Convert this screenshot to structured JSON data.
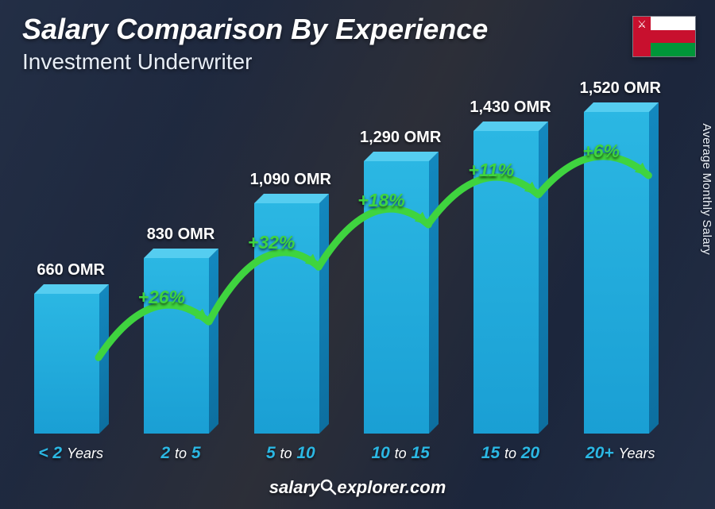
{
  "header": {
    "title": "Salary Comparison By Experience",
    "subtitle": "Investment Underwriter"
  },
  "flag": {
    "country": "Oman",
    "colors": {
      "red": "#c8102e",
      "white": "#ffffff",
      "green": "#009639"
    }
  },
  "y_axis_label": "Average Monthly Salary",
  "footer_source": "salaryexplorer.com",
  "chart": {
    "type": "bar",
    "currency": "OMR",
    "max_value": 1600,
    "bar_colors": {
      "front_top": "#2bb7e3",
      "front_bottom": "#1a9fd4",
      "side_top": "#1388bf",
      "side_bottom": "#0d6fa0",
      "top_face": "#55cdf0"
    },
    "value_label_color": "#ffffff",
    "value_label_fontsize": 20,
    "xlabel_color": "#2bb7e3",
    "xlabel_mid_color": "#ffffff",
    "xlabel_fontsize": 21,
    "arc_color": "#3fd43f",
    "arc_stroke_width": 9,
    "pct_label_color": "#3fd43f",
    "pct_label_fontsize": 23,
    "bars": [
      {
        "label_pre": "< 2",
        "label_mid": "",
        "label_post": "Years",
        "value": 660,
        "value_text": "660 OMR"
      },
      {
        "label_pre": "2",
        "label_mid": "to",
        "label_post": "5",
        "value": 830,
        "value_text": "830 OMR"
      },
      {
        "label_pre": "5",
        "label_mid": "to",
        "label_post": "10",
        "value": 1090,
        "value_text": "1,090 OMR"
      },
      {
        "label_pre": "10",
        "label_mid": "to",
        "label_post": "15",
        "value": 1290,
        "value_text": "1,290 OMR"
      },
      {
        "label_pre": "15",
        "label_mid": "to",
        "label_post": "20",
        "value": 1430,
        "value_text": "1,430 OMR"
      },
      {
        "label_pre": "20+",
        "label_mid": "",
        "label_post": "Years",
        "value": 1520,
        "value_text": "1,520 OMR"
      }
    ],
    "increases": [
      {
        "between": [
          0,
          1
        ],
        "pct_text": "+26%"
      },
      {
        "between": [
          1,
          2
        ],
        "pct_text": "+32%"
      },
      {
        "between": [
          2,
          3
        ],
        "pct_text": "+18%"
      },
      {
        "between": [
          3,
          4
        ],
        "pct_text": "+11%"
      },
      {
        "between": [
          4,
          5
        ],
        "pct_text": "+6%"
      }
    ]
  },
  "background": {
    "overlay_color": "rgba(20,30,50,0.72)"
  }
}
